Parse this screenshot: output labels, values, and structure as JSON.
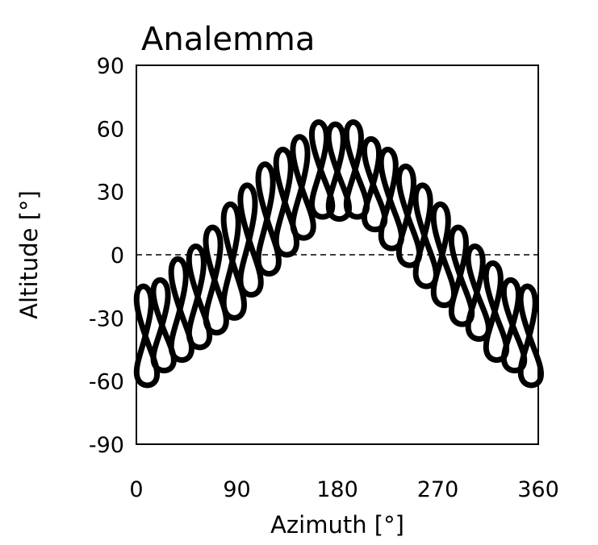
{
  "chart_data": {
    "type": "scatter",
    "title": "Analemma",
    "xlabel": "Azimuth [°]",
    "ylabel": "Altitude [°]",
    "xlim": [
      0,
      360
    ],
    "ylim": [
      -90,
      90
    ],
    "xticks": [
      "0",
      "90",
      "180",
      "270",
      "360"
    ],
    "yticks": [
      "90",
      "60",
      "30",
      "0",
      "-30",
      "-60",
      "-90"
    ],
    "grid": false,
    "reference_line": {
      "y": 0,
      "style": "dashed"
    },
    "series_color": "#000000",
    "loops": [
      {
        "azimuth": 8,
        "alt_top": -15,
        "alt_bottom": -62
      },
      {
        "azimuth": 23,
        "alt_top": -12,
        "alt_bottom": -55
      },
      {
        "azimuth": 39,
        "alt_top": -2,
        "alt_bottom": -50
      },
      {
        "azimuth": 55,
        "alt_top": 4,
        "alt_bottom": -44
      },
      {
        "azimuth": 70,
        "alt_top": 13,
        "alt_bottom": -37
      },
      {
        "azimuth": 86,
        "alt_top": 24,
        "alt_bottom": -30
      },
      {
        "azimuth": 101,
        "alt_top": 33,
        "alt_bottom": -19
      },
      {
        "azimuth": 117,
        "alt_top": 43,
        "alt_bottom": -9
      },
      {
        "azimuth": 133,
        "alt_top": 50,
        "alt_bottom": 0
      },
      {
        "azimuth": 148,
        "alt_top": 56,
        "alt_bottom": 8
      },
      {
        "azimuth": 165,
        "alt_top": 63,
        "alt_bottom": 18
      },
      {
        "azimuth": 180,
        "alt_top": 62,
        "alt_bottom": 17
      },
      {
        "azimuth": 196,
        "alt_top": 63,
        "alt_bottom": 18
      },
      {
        "azimuth": 212,
        "alt_top": 55,
        "alt_bottom": 12
      },
      {
        "azimuth": 227,
        "alt_top": 50,
        "alt_bottom": 3
      },
      {
        "azimuth": 243,
        "alt_top": 42,
        "alt_bottom": -5
      },
      {
        "azimuth": 258,
        "alt_top": 33,
        "alt_bottom": -15
      },
      {
        "azimuth": 274,
        "alt_top": 24,
        "alt_bottom": -24
      },
      {
        "azimuth": 290,
        "alt_top": 13,
        "alt_bottom": -33
      },
      {
        "azimuth": 305,
        "alt_top": 4,
        "alt_bottom": -40
      },
      {
        "azimuth": 321,
        "alt_top": -4,
        "alt_bottom": -50
      },
      {
        "azimuth": 337,
        "alt_top": -12,
        "alt_bottom": -55
      },
      {
        "azimuth": 352,
        "alt_top": -15,
        "alt_bottom": -62
      }
    ]
  }
}
